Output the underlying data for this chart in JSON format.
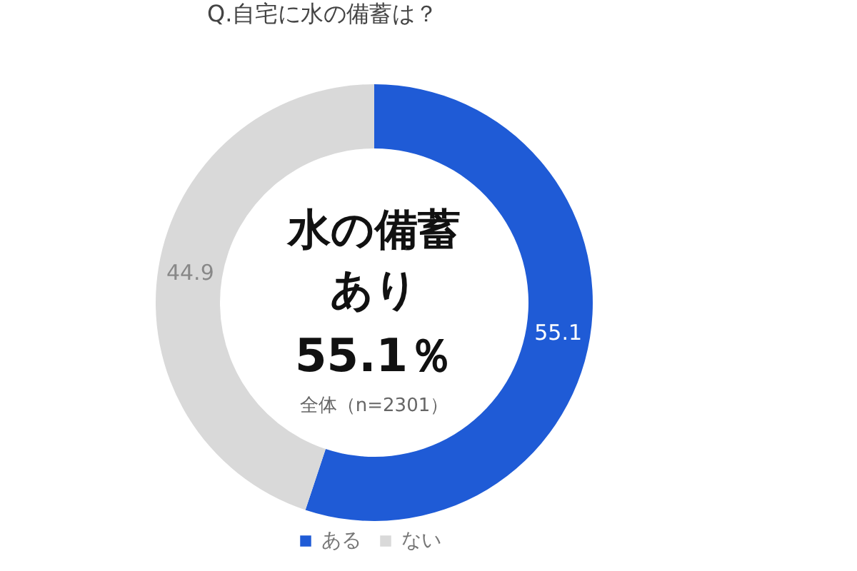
{
  "chart_data": {
    "type": "donut",
    "title": "Q.自宅に水の備蓄は？",
    "categories": [
      "ある",
      "ない"
    ],
    "values": [
      55.1,
      44.9
    ],
    "colors": [
      "#1f5bd6",
      "#d9d9d9"
    ],
    "data_labels": true,
    "legend": "bottom",
    "annotations": [
      "水の備蓄",
      "あり",
      "55.1％",
      "全体（n=2301）"
    ]
  }
}
